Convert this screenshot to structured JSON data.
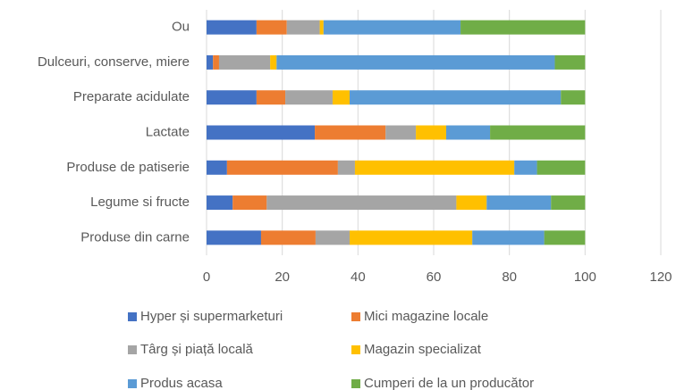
{
  "chart_data": {
    "type": "bar",
    "orientation": "horizontal",
    "stacked": true,
    "grid": true,
    "categories": [
      "Ou",
      "Dulceuri, conserve, miere",
      "Preparate acidulate",
      "Lactate",
      "Produse de patiserie",
      "Legume si fructe",
      "Produse din carne"
    ],
    "series": [
      {
        "name": "Hyper și supermarketuri",
        "color": "#4472c4",
        "values": [
          13.2,
          1.7,
          13.2,
          28.6,
          5.4,
          6.9,
          14.4
        ]
      },
      {
        "name": "Mici magazine locale",
        "color": "#ed7d31",
        "values": [
          8.0,
          1.6,
          7.6,
          18.7,
          29.3,
          9.0,
          14.4
        ]
      },
      {
        "name": "Târg și piață locală",
        "color": "#a5a5a5",
        "values": [
          8.7,
          13.5,
          12.5,
          8.0,
          4.5,
          50.1,
          9.0
        ]
      },
      {
        "name": "Magazin specializat",
        "color": "#ffc000",
        "values": [
          1.0,
          1.7,
          4.5,
          8.0,
          42.1,
          8.0,
          32.4
        ]
      },
      {
        "name": "Produs acasa",
        "color": "#5b9bd5",
        "values": [
          36.2,
          73.5,
          55.8,
          11.6,
          6.0,
          17.0,
          19.0
        ]
      },
      {
        "name": "Cumperi de la un producător",
        "color": "#70ad47",
        "values": [
          32.9,
          8.0,
          6.4,
          25.1,
          12.7,
          9.0,
          10.8
        ]
      }
    ],
    "xlim": [
      0,
      120
    ],
    "xticks": [
      0,
      20,
      40,
      60,
      80,
      100,
      120
    ]
  }
}
